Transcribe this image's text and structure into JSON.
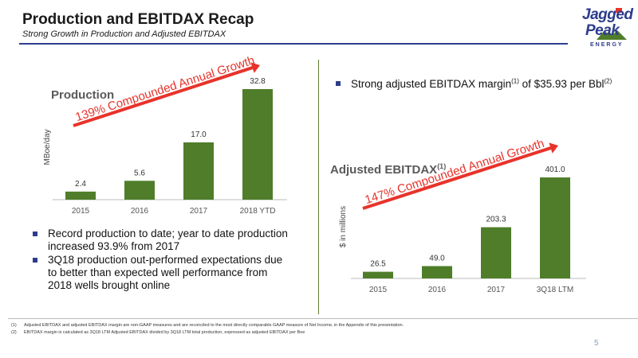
{
  "header": {
    "title": "Production and EBITDAX Recap",
    "subtitle": "Strong Growth in Production and Adjusted EBITDAX"
  },
  "logo": {
    "line1": "Jagged",
    "line2": "Peak",
    "line3": "ENERGY"
  },
  "left_panel": {
    "bullets": [
      "Record production to date; year to date production increased 93.9% from 2017",
      "3Q18 production out-performed expectations due to better than expected well performance from 2018 wells brought online"
    ]
  },
  "right_panel": {
    "bullet_pre": "Strong adjusted EBITDAX margin",
    "bullet_sup1": "(1)",
    "bullet_mid": " of $35.93 per Bbl",
    "bullet_sup2": "(2)"
  },
  "chart_data": [
    {
      "type": "bar",
      "title": "Production",
      "title_sup": "",
      "ylabel": "MBoe/day",
      "categories": [
        "2015",
        "2016",
        "2017",
        "2018 YTD"
      ],
      "values": [
        2.4,
        5.6,
        17.0,
        32.8
      ],
      "value_labels": [
        "2.4",
        "5.6",
        "17.0",
        "32.8"
      ],
      "ylim": [
        0,
        32.8
      ],
      "bar_color": "#4f7d2a",
      "annotation": "139% Compounded Annual Growth",
      "annotation_color": "#e8332b"
    },
    {
      "type": "bar",
      "title": "Adjusted EBITDAX",
      "title_sup": "(1)",
      "ylabel": "$ in millions",
      "categories": [
        "2015",
        "2016",
        "2017",
        "3Q18 LTM"
      ],
      "values": [
        26.5,
        49.0,
        203.3,
        401.0
      ],
      "value_labels": [
        "26.5",
        "49.0",
        "203.3",
        "401.0"
      ],
      "ylim": [
        0,
        401.0
      ],
      "bar_color": "#4f7d2a",
      "annotation": "147% Compounded Annual Growth",
      "annotation_color": "#e8332b"
    }
  ],
  "footnotes": [
    {
      "mark": "(1)",
      "text": "Adjusted EBITDAX and adjusted EBITDAX margin are non-GAAP measures and are reconciled to the most directly comparable GAAP measure of Net Income, in the Appendix of this presentation."
    },
    {
      "mark": "(2)",
      "text": "EBITDAX margin is calculated as 3Q18 LTM Adjusted EBITDAX divided by 3Q18 LTM total production, expressed as adjusted EBITDAX per Boe"
    }
  ],
  "page_number": "5"
}
